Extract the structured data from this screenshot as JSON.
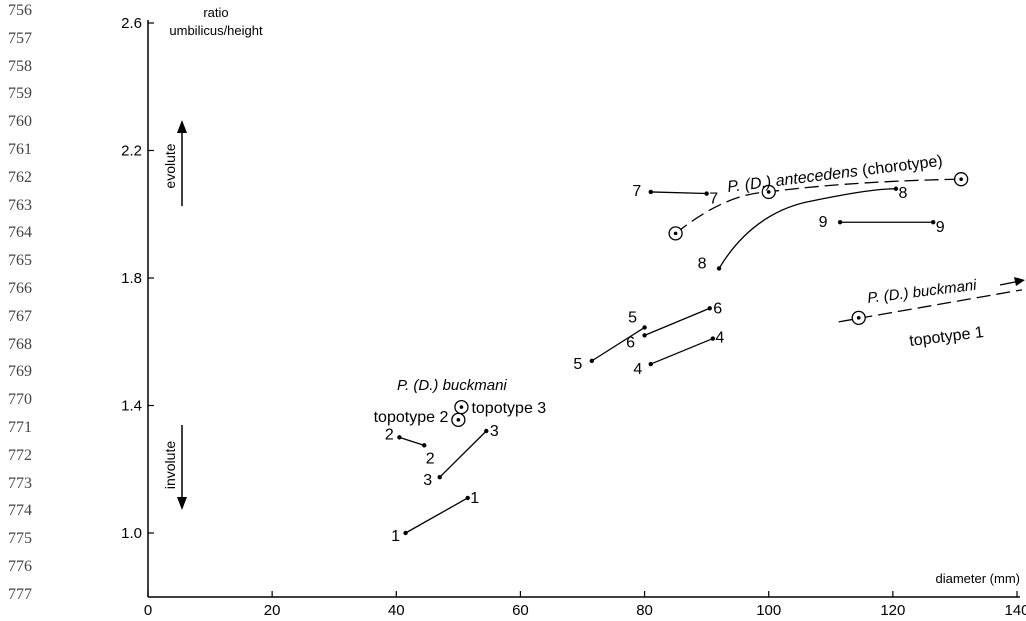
{
  "line_numbers": [
    "756",
    "757",
    "758",
    "759",
    "760",
    "761",
    "762",
    "763",
    "764",
    "765",
    "766",
    "767",
    "768",
    "769",
    "770",
    "771",
    "772",
    "773",
    "774",
    "775",
    "776",
    "777"
  ],
  "chart_data": {
    "type": "line",
    "xlabel": "diameter (mm)",
    "ylabel_line1": "ratio",
    "ylabel_line2": "umbilicus/height",
    "xlim": [
      0,
      140
    ],
    "ylim": [
      0.8,
      2.6
    ],
    "xticks": [
      "0",
      "20",
      "40",
      "60",
      "80",
      "100",
      "120",
      "140"
    ],
    "yticks": [
      "1.0",
      "1.4",
      "1.8",
      "2.2",
      "2.6"
    ],
    "evolute_label": "evolute",
    "involute_label": "involute",
    "series": [
      {
        "name": "1",
        "x": [
          41.5,
          51.5
        ],
        "y": [
          1.0,
          1.11
        ],
        "start_label": "1",
        "end_label": "1"
      },
      {
        "name": "2",
        "x": [
          40.5,
          44.5
        ],
        "y": [
          1.3,
          1.275
        ],
        "start_label": "2",
        "end_label": "2"
      },
      {
        "name": "3",
        "x": [
          47.0,
          54.5
        ],
        "y": [
          1.175,
          1.32
        ],
        "start_label": "3",
        "end_label": "3"
      },
      {
        "name": "4",
        "x": [
          81.0,
          91.0
        ],
        "y": [
          1.53,
          1.61
        ],
        "start_label": "4",
        "end_label": "4"
      },
      {
        "name": "5",
        "x": [
          71.5,
          80.0
        ],
        "y": [
          1.54,
          1.645
        ],
        "start_label": "5",
        "end_label": "5"
      },
      {
        "name": "6",
        "x": [
          80.0,
          90.5
        ],
        "y": [
          1.62,
          1.705
        ],
        "start_label": "6",
        "end_label": "6"
      },
      {
        "name": "7",
        "x": [
          81.0,
          90.0
        ],
        "y": [
          2.07,
          2.065
        ],
        "start_label": "7",
        "end_label": "7"
      },
      {
        "name": "8",
        "x": [
          92.0,
          106.5,
          120.5
        ],
        "y": [
          1.83,
          2.04,
          2.08
        ],
        "start_label": "8",
        "end_label": "8"
      },
      {
        "name": "9",
        "x": [
          111.5,
          126.5
        ],
        "y": [
          1.975,
          1.975
        ],
        "start_label": "9",
        "end_label": "9"
      }
    ],
    "antecedens": {
      "label_italic": "P. (D.) antecedens",
      "label_rest": " (chorotype)",
      "x": [
        85,
        100,
        131
      ],
      "y": [
        1.94,
        2.07,
        2.11
      ]
    },
    "topotype1": {
      "species": "P. (D.) buckmani",
      "label": "topotype 1",
      "x": [
        114.5
      ],
      "y": [
        1.675
      ]
    },
    "buckmani_label": "P. (D.) buckmani",
    "topotype2": {
      "label": "topotype 2",
      "x": 50,
      "y": 1.355
    },
    "topotype3": {
      "label": "topotype 3",
      "x": 50.5,
      "y": 1.395
    }
  }
}
